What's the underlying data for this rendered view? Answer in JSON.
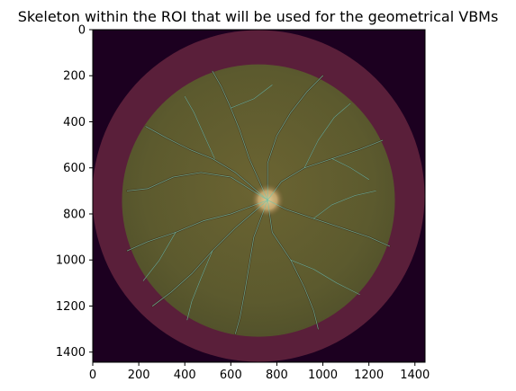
{
  "chart_data": {
    "type": "image",
    "title": "Skeleton within the ROI that will be used for the geometrical VBMs",
    "xlim": [
      0,
      1444
    ],
    "ylim": [
      1444,
      0
    ],
    "xticks": [
      0,
      200,
      400,
      600,
      800,
      1000,
      1200,
      1400
    ],
    "yticks": [
      0,
      200,
      400,
      600,
      800,
      1000,
      1200,
      1400
    ],
    "image": {
      "fundus_disc": {
        "cx": 720,
        "cy": 722,
        "r": 722
      },
      "roi_disc": {
        "cx": 720,
        "cy": 742,
        "r": 593
      },
      "optic_disc": {
        "cx": 760,
        "cy": 740,
        "r": 72
      }
    },
    "colors": {
      "background": "#1c0020",
      "outer_ring": "#5a1f3a",
      "roi_fill": "#5a5a2e",
      "optic_disc": "#bfa56a",
      "vessel": "#74c2a6",
      "vessel_dark": "#3a2416"
    }
  }
}
